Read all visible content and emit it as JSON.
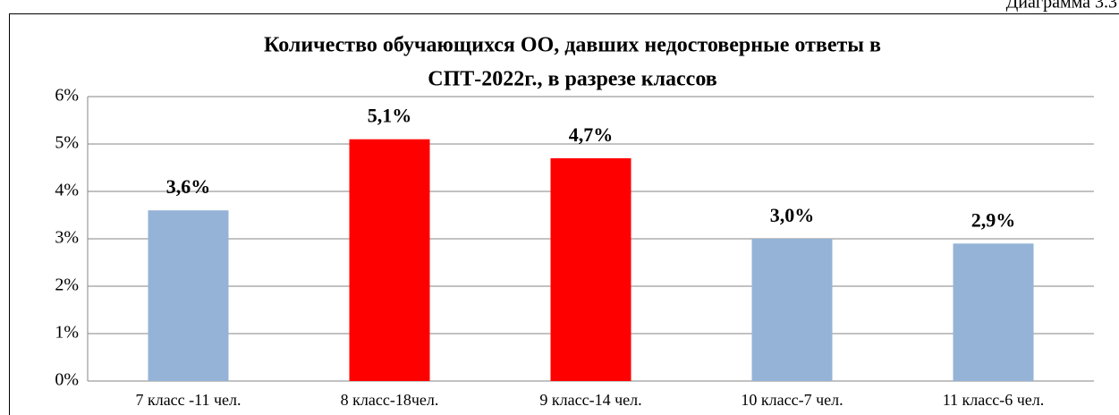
{
  "chart_data": {
    "type": "bar",
    "annotation": "Диаграмма 3.3",
    "title": [
      "Количество обучающихся ОО, давших недостоверные ответы в",
      "СПТ-2022г., в разрезе классов"
    ],
    "categories": [
      "7 класс -11 чел.",
      "8 класс-18чел.",
      "9 класс-14 чел.",
      "10 класс-7 чел.",
      "11 класс-6 чел."
    ],
    "values": [
      3.6,
      5.1,
      4.7,
      3.0,
      2.9
    ],
    "value_labels": [
      "3,6%",
      "5,1%",
      "4,7%",
      "3,0%",
      "2,9%"
    ],
    "colors": [
      "#95b3d7",
      "#ff0000",
      "#ff0000",
      "#95b3d7",
      "#95b3d7"
    ],
    "ylim": [
      0,
      6
    ],
    "yticks": [
      {
        "value": 0,
        "label": "0%"
      },
      {
        "value": 1,
        "label": "1%"
      },
      {
        "value": 2,
        "label": "2%"
      },
      {
        "value": 3,
        "label": "3%"
      },
      {
        "value": 4,
        "label": "4%"
      },
      {
        "value": 5,
        "label": "5%"
      },
      {
        "value": 6,
        "label": "6%"
      }
    ],
    "grid": true
  }
}
